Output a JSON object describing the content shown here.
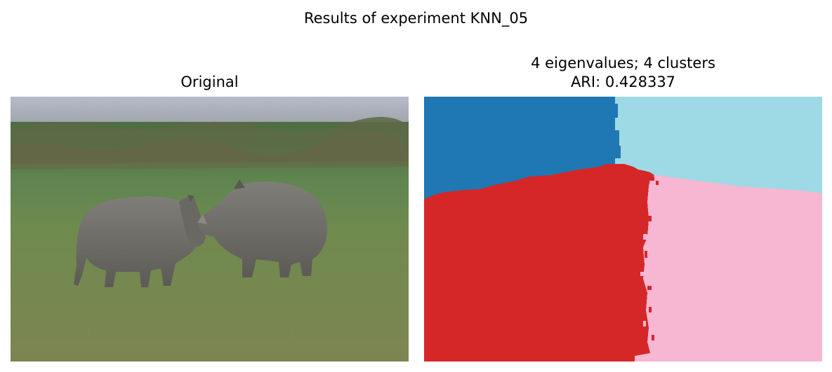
{
  "figure": {
    "suptitle": "Results of experiment KNN_05"
  },
  "left_panel": {
    "title": "Original",
    "image_subject": "two black rhinoceroses facing each other on a grass field"
  },
  "right_panel": {
    "title_line1": "4 eigenvalues; 4 clusters",
    "title_line2": "ARI: 0.428337",
    "clusters": [
      {
        "id": 0,
        "color": "#1f77b4"
      },
      {
        "id": 1,
        "color": "#9edae5"
      },
      {
        "id": 2,
        "color": "#d62728"
      },
      {
        "id": 3,
        "color": "#f7b6d2"
      }
    ]
  },
  "colors": {
    "sky": "#b9bccd",
    "far_field": "#5f7a4e",
    "grass": "#6f8a4e",
    "rhino": "#6e6c66"
  }
}
